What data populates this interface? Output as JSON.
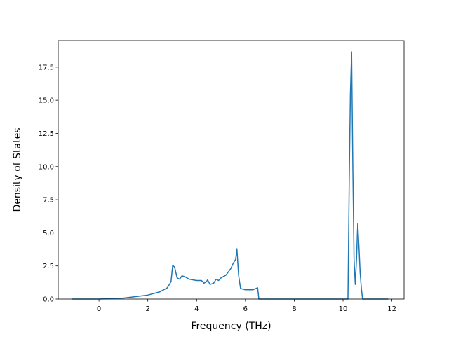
{
  "chart_data": {
    "type": "line",
    "xlabel": "Frequency (THz)",
    "ylabel": "Density of States",
    "x": [
      -1.1,
      0,
      1,
      2,
      2.5,
      2.8,
      2.95,
      3.02,
      3.1,
      3.2,
      3.3,
      3.4,
      3.5,
      3.7,
      4.0,
      4.2,
      4.3,
      4.4,
      4.45,
      4.55,
      4.7,
      4.8,
      4.9,
      5.0,
      5.2,
      5.4,
      5.5,
      5.6,
      5.65,
      5.72,
      5.8,
      6.0,
      6.3,
      6.5,
      6.55,
      10.2,
      10.25,
      10.3,
      10.35,
      10.4,
      10.45,
      10.5,
      10.55,
      10.6,
      10.65,
      10.7,
      10.75,
      10.8,
      11.85
    ],
    "series": [
      {
        "color": "#1f77b4",
        "values": [
          0,
          0,
          0.07,
          0.3,
          0.55,
          0.85,
          1.3,
          2.55,
          2.4,
          1.6,
          1.5,
          1.75,
          1.7,
          1.5,
          1.4,
          1.4,
          1.2,
          1.3,
          1.45,
          1.1,
          1.2,
          1.5,
          1.4,
          1.6,
          1.8,
          2.3,
          2.7,
          3.0,
          3.8,
          1.8,
          0.8,
          0.7,
          0.7,
          0.85,
          0,
          0,
          8.5,
          15.5,
          18.65,
          10,
          3,
          1.1,
          3,
          5.7,
          4,
          2,
          0.8,
          0,
          0
        ]
      }
    ],
    "xlim": [
      -1.67,
      12.5
    ],
    "ylim": [
      0,
      19.5
    ],
    "xticks": [
      0,
      2,
      4,
      6,
      8,
      10,
      12
    ],
    "yticks": [
      {
        "value": 0,
        "label": "0.0"
      },
      2.5,
      {
        "value": 5,
        "label": "5.0"
      },
      7.5,
      {
        "value": 10,
        "label": "10.0"
      },
      12.5,
      {
        "value": 15,
        "label": "15.0"
      },
      17.5
    ]
  }
}
